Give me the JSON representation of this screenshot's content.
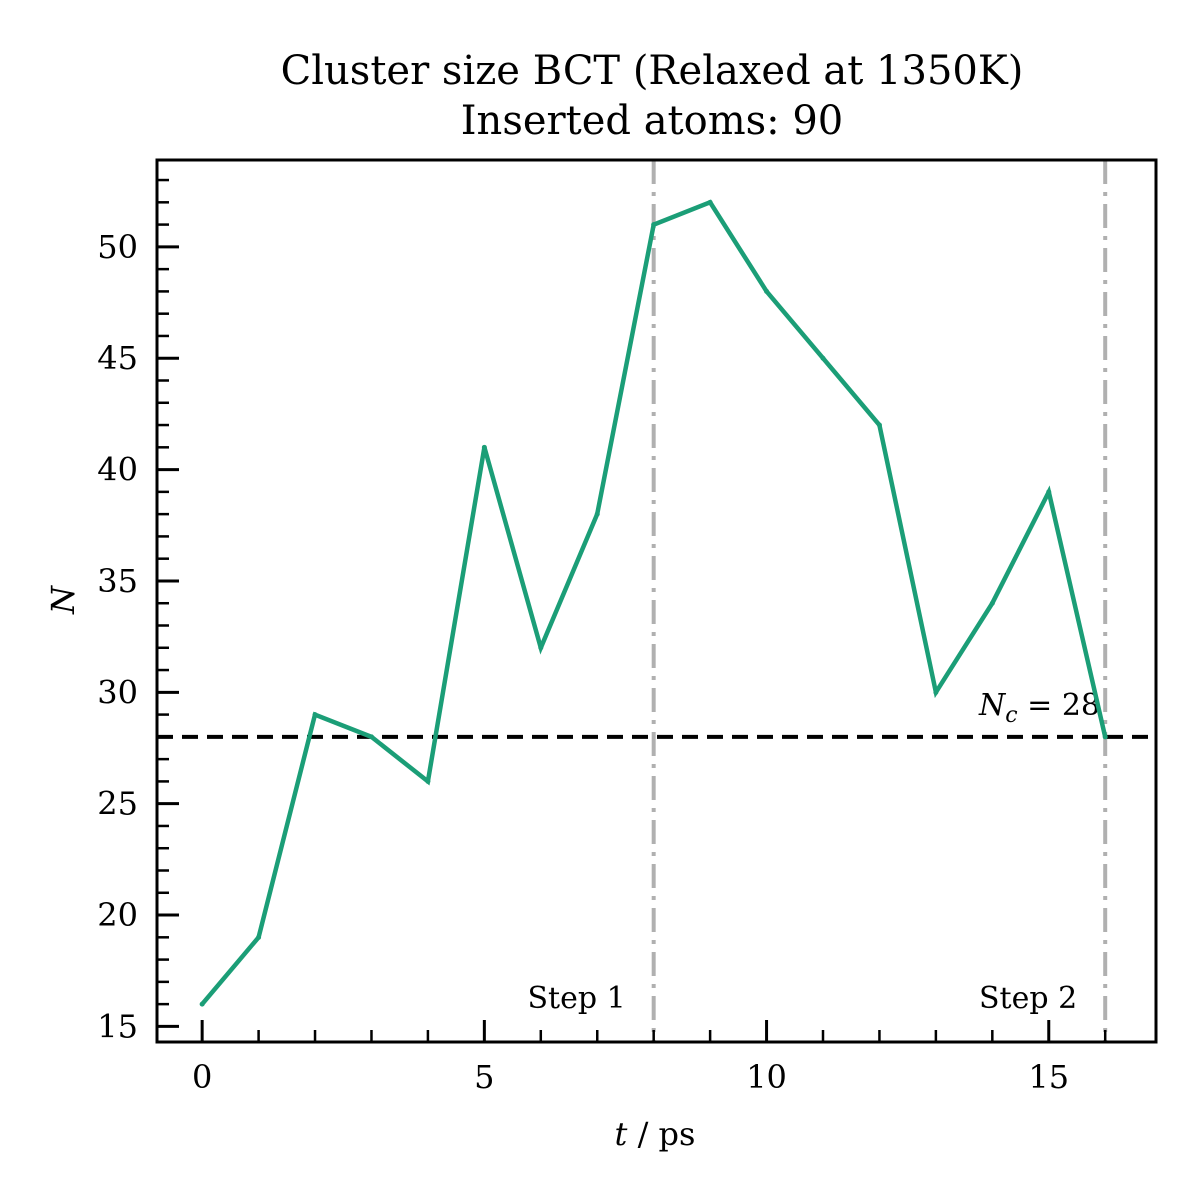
{
  "title_line1": "Cluster size BCT (Relaxed at 1350K)",
  "title_line2": "Inserted atoms: 90",
  "chart_data": {
    "type": "line",
    "xlabel_var": "t",
    "xlabel_unit": " / ps",
    "ylabel": "N",
    "xlim": [
      -0.8,
      16.9
    ],
    "ylim": [
      14.3,
      53.9
    ],
    "x_ticks": [
      0,
      5,
      10,
      15
    ],
    "x_tick_labels": [
      "0",
      "5",
      "10",
      "15"
    ],
    "y_ticks": [
      15,
      20,
      25,
      30,
      35,
      40,
      45,
      50
    ],
    "y_tick_labels": [
      "15",
      "20",
      "25",
      "30",
      "35",
      "40",
      "45",
      "50"
    ],
    "grid": false,
    "series": [
      {
        "color": "#1b9e77",
        "x": [
          0,
          1,
          2,
          3,
          4,
          5,
          6,
          7,
          8,
          9,
          10,
          11,
          12,
          13,
          14,
          15,
          16
        ],
        "y": [
          16,
          19,
          29,
          28,
          26,
          41,
          32,
          38,
          51,
          52,
          48,
          45,
          42,
          30,
          34,
          39,
          28
        ]
      }
    ],
    "hline": {
      "y": 28,
      "color": "#000000",
      "style": "dashed",
      "label_var": "N",
      "label_sub": "c",
      "label_rest": " = 28"
    },
    "vlines": [
      {
        "x": 8,
        "color": "#b0b0b0",
        "style": "dashdot",
        "label": "Step 1"
      },
      {
        "x": 16,
        "color": "#b0b0b0",
        "style": "dashdot",
        "label": "Step 2"
      }
    ]
  }
}
